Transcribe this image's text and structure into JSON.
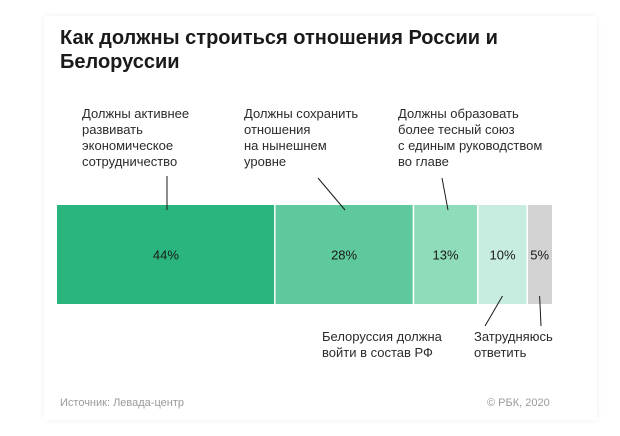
{
  "chart_data": {
    "type": "bar",
    "stacked": true,
    "orientation": "horizontal",
    "title": "Как должны строиться отношения России и Белоруссии",
    "categories": [
      "Должны активнее развивать экономическое сотрудничество",
      "Должны сохранить отношения на нынешнем уровне",
      "Должны образовать более тесный союз с единым руководством во главе",
      "Белоруссия должна войти в состав РФ",
      "Затрудняюсь ответить"
    ],
    "values": [
      44,
      28,
      13,
      10,
      5
    ],
    "value_labels": [
      "44%",
      "28%",
      "13%",
      "10%",
      "5%"
    ],
    "colors": [
      "#2bb57e",
      "#5ec99c",
      "#8fdcba",
      "#c6ede0",
      "#d3d3d3"
    ],
    "legend_placement": "labels above and below segments with leader lines",
    "grid": false
  },
  "labels": {
    "top": [
      "Должны активнее\nразвивать\nэкономическое\nсотрудничество",
      "Должны сохранить\nотношения\nна нынешнем\nуровне",
      "Должны образовать\nболее тесный союз\nс единым руководством\nво главе"
    ],
    "bottom": [
      "Белоруссия должна\nвойти в состав РФ",
      "Затрудняюсь\nответить"
    ]
  },
  "footer": {
    "source": "Источник: Левада-центр",
    "copyright": "© РБК, 2020"
  }
}
